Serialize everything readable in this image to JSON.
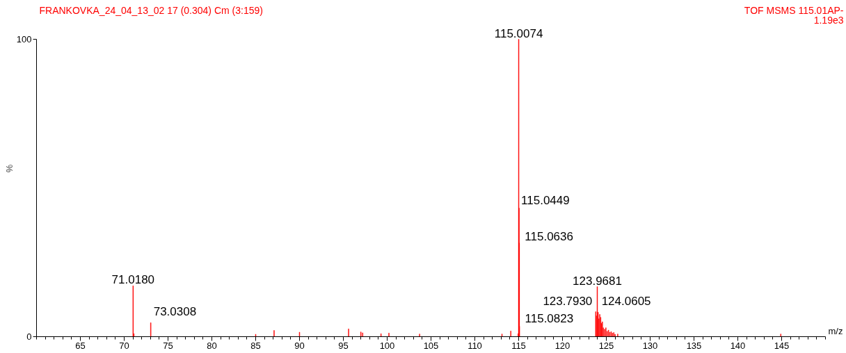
{
  "chart_data": {
    "type": "bar",
    "title": "FRANKOVKA_24_04_13_02 17 (0.304) Cm (3:159)",
    "annotations": [
      "TOF MSMS 115.01AP-",
      "1.19e3",
      {
        "text": "71.0180",
        "x": 71.018,
        "y": 17.1
      },
      {
        "text": "73.0308",
        "x": 73.0308,
        "y": 4.7
      },
      {
        "text": "115.0074",
        "x": 115.0074,
        "y": 100
      },
      {
        "text": "115.0449",
        "x": 115.0449,
        "y": 43.2
      },
      {
        "text": "115.0636",
        "x": 115.0636,
        "y": 31.5
      },
      {
        "text": "115.0823",
        "x": 115.0823,
        "y": 3.5
      },
      {
        "text": "123.7930",
        "x": 123.793,
        "y": 8.4
      },
      {
        "text": "123.9681",
        "x": 123.9681,
        "y": 16.8
      },
      {
        "text": "124.0605",
        "x": 124.0605,
        "y": 8.2
      }
    ],
    "xlabel": "m/z",
    "ylabel": "%",
    "xlim": [
      60,
      150
    ],
    "xticks": [
      65,
      70,
      75,
      80,
      85,
      90,
      95,
      100,
      105,
      110,
      115,
      120,
      125,
      130,
      135,
      140,
      145
    ],
    "ylim": [
      0,
      100
    ],
    "yticks": [
      0,
      100
    ],
    "grid": false,
    "series": [
      {
        "color": "#ff0000",
        "x": [
          71.018,
          71.1,
          73.0308,
          85.0,
          87.1,
          90.0,
          95.6,
          97.0,
          97.2,
          99.3,
          100.2,
          103.7,
          113.1,
          114.1,
          114.95,
          115.0074,
          115.0449,
          115.0636,
          115.0823,
          123.793,
          123.85,
          123.9681,
          124.0605,
          124.15,
          124.25,
          124.35,
          124.45,
          124.55,
          124.65,
          124.8,
          124.95,
          125.1,
          125.25,
          125.4,
          125.55,
          125.7,
          125.85,
          126.0,
          126.3,
          144.9
        ],
        "values": [
          17.1,
          1.0,
          4.7,
          0.8,
          2.1,
          1.5,
          2.6,
          1.6,
          1.3,
          1.0,
          1.2,
          0.9,
          0.9,
          1.9,
          1.0,
          100,
          43.2,
          31.5,
          3.5,
          8.4,
          7.0,
          16.8,
          8.2,
          6.0,
          7.5,
          6.5,
          4.5,
          5.0,
          3.0,
          2.5,
          3.0,
          1.8,
          2.2,
          1.5,
          1.7,
          1.2,
          1.4,
          0.8,
          0.9,
          0.9
        ]
      }
    ]
  }
}
